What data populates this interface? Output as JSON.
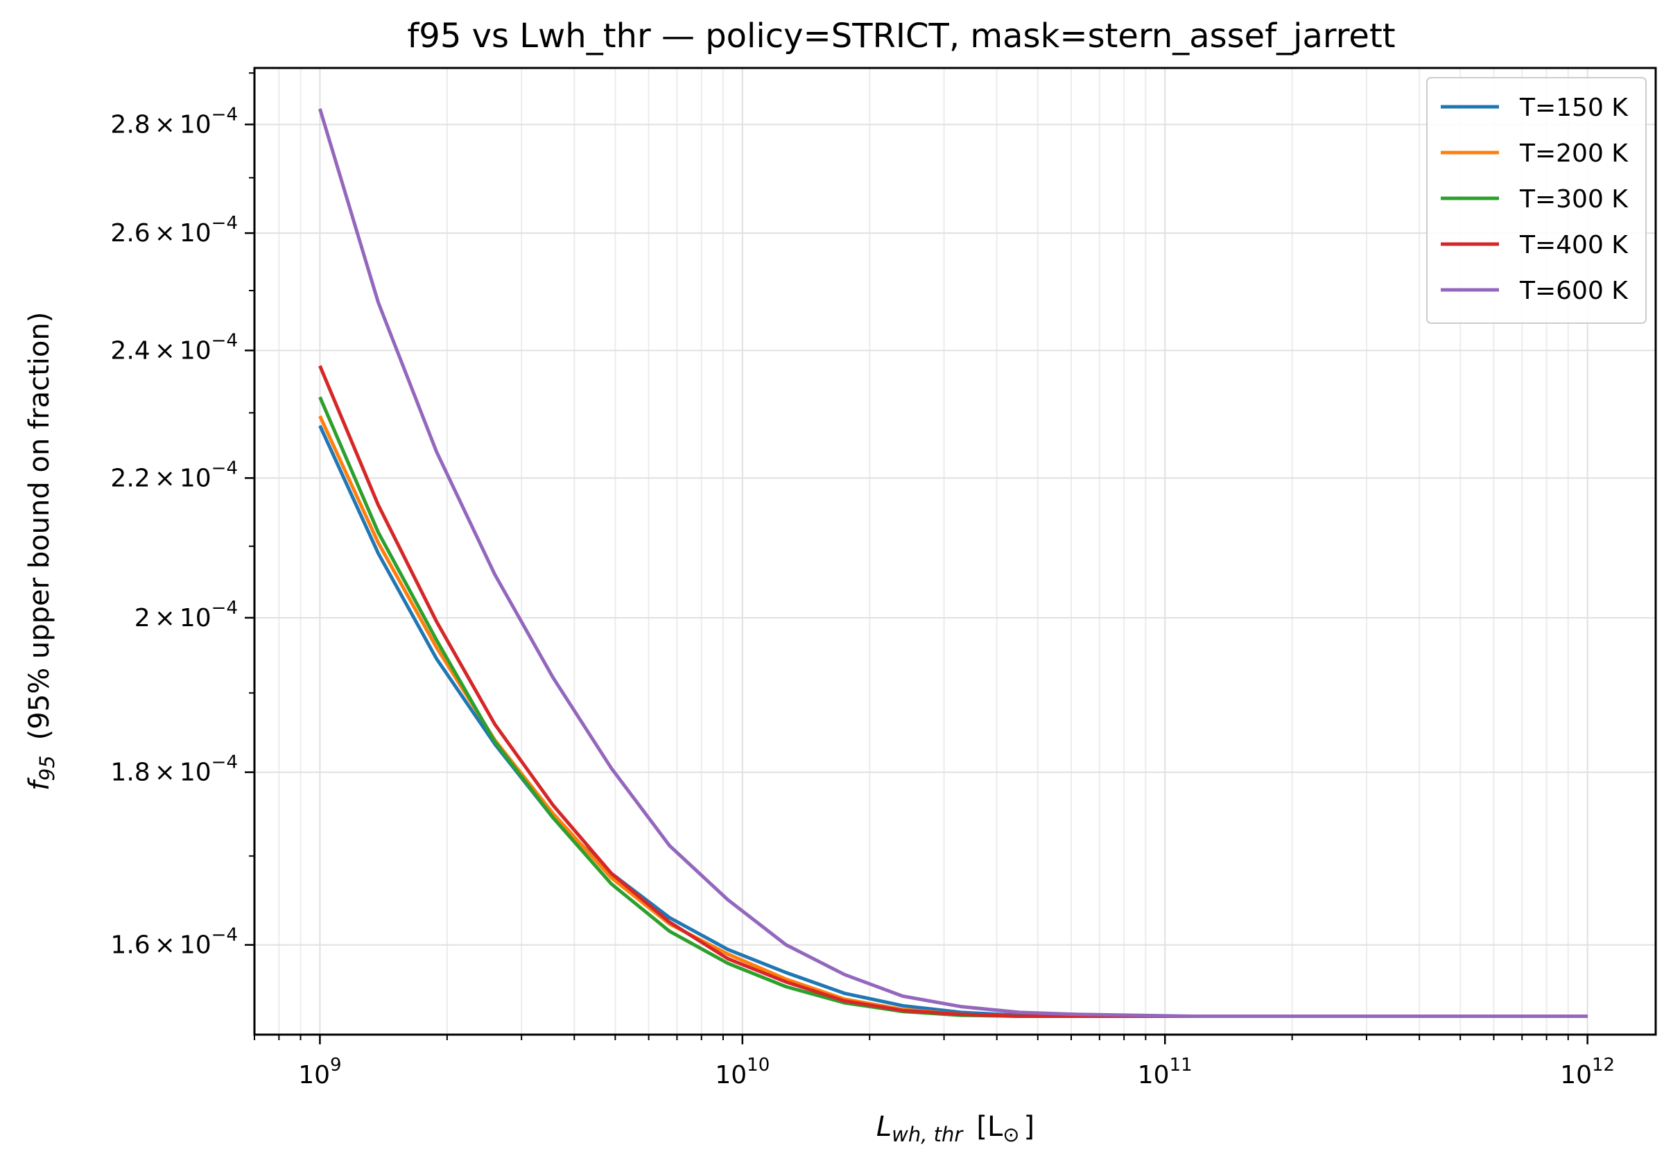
{
  "chart_data": {
    "type": "line",
    "title": "f95 vs Lwh_thr — policy=STRICT, mask=stern_assef_jarrett",
    "xlabel": {
      "main": "L",
      "sub": "wh, thr",
      "unit_open": "[L",
      "unit_sub": "⊙",
      "unit_close": "]"
    },
    "ylabel": {
      "main": "f",
      "sub": "95",
      "desc": "(95% upper bound on fraction)"
    },
    "xscale": "log",
    "yscale": "log",
    "xlim": [
      700000000.0,
      1450000000000.0
    ],
    "ylim": [
      0.0001505,
      0.000291
    ],
    "grid": true,
    "legend_position": "upper-right",
    "x_ticks": [
      {
        "value": 1000000000.0,
        "base": "10",
        "exp": "9"
      },
      {
        "value": 10000000000.0,
        "base": "10",
        "exp": "10"
      },
      {
        "value": 100000000000.0,
        "base": "10",
        "exp": "11"
      },
      {
        "value": 1000000000000.0,
        "base": "10",
        "exp": "12"
      }
    ],
    "y_ticks": [
      {
        "value": 0.00016,
        "mant": "1.6",
        "times": "×",
        "base": "10",
        "exp": "−4"
      },
      {
        "value": 0.00018,
        "mant": "1.8",
        "times": "×",
        "base": "10",
        "exp": "−4"
      },
      {
        "value": 0.0002,
        "mant": "2",
        "times": "×",
        "base": "10",
        "exp": "−4"
      },
      {
        "value": 0.00022,
        "mant": "2.2",
        "times": "×",
        "base": "10",
        "exp": "−4"
      },
      {
        "value": 0.00024,
        "mant": "2.4",
        "times": "×",
        "base": "10",
        "exp": "−4"
      },
      {
        "value": 0.00026,
        "mant": "2.6",
        "times": "×",
        "base": "10",
        "exp": "−4"
      },
      {
        "value": 0.00028,
        "mant": "2.8",
        "times": "×",
        "base": "10",
        "exp": "−4"
      }
    ],
    "x": [
      1000000000.0,
      1374000000.0,
      1887000000.0,
      2593000000.0,
      3562000000.0,
      4894000000.0,
      6723000000.0,
      9237000000.0,
      12690000000.0,
      17430000000.0,
      23950000000.0,
      32900000000.0,
      45200000000.0,
      62100000000.0,
      85320000000.0,
      117200000000.0,
      161000000000.0,
      221200000000.0,
      303900000000.0,
      417500000000.0,
      573600000000.0,
      788000000000.0,
      1000000000000.0
    ],
    "series": [
      {
        "name": "T=150 K",
        "color": "#1f77b4",
        "values": [
          0.000228,
          0.000209,
          0.0001945,
          0.0001835,
          0.0001745,
          0.000168,
          0.000163,
          0.0001595,
          0.000157,
          0.0001548,
          0.0001535,
          0.0001528,
          0.0001525,
          0.0001524,
          0.0001524,
          0.0001524,
          0.0001524,
          0.0001524,
          0.0001524,
          0.0001524,
          0.0001524,
          0.0001524,
          0.0001524
        ]
      },
      {
        "name": "T=200 K",
        "color": "#ff7f0e",
        "values": [
          0.0002295,
          0.0002105,
          0.000196,
          0.000184,
          0.000175,
          0.0001675,
          0.0001623,
          0.000159,
          0.0001563,
          0.0001542,
          0.0001531,
          0.0001526,
          0.0001524,
          0.0001524,
          0.0001524,
          0.0001524,
          0.0001524,
          0.0001524,
          0.0001524,
          0.0001524,
          0.0001524,
          0.0001524,
          0.0001524
        ]
      },
      {
        "name": "T=300 K",
        "color": "#2ca02c",
        "values": [
          0.0002325,
          0.000212,
          0.000197,
          0.0001838,
          0.0001745,
          0.0001668,
          0.0001615,
          0.000158,
          0.0001555,
          0.0001538,
          0.0001529,
          0.0001525,
          0.0001524,
          0.0001524,
          0.0001524,
          0.0001524,
          0.0001524,
          0.0001524,
          0.0001524,
          0.0001524,
          0.0001524,
          0.0001524,
          0.0001524
        ]
      },
      {
        "name": "T=400 K",
        "color": "#d62728",
        "values": [
          0.0002375,
          0.000216,
          0.0001995,
          0.000186,
          0.000176,
          0.000168,
          0.0001625,
          0.0001585,
          0.000156,
          0.000154,
          0.000153,
          0.0001526,
          0.0001524,
          0.0001524,
          0.0001524,
          0.0001524,
          0.0001524,
          0.0001524,
          0.0001524,
          0.0001524,
          0.0001524,
          0.0001524,
          0.0001524
        ]
      },
      {
        "name": "T=600 K",
        "color": "#9467bd",
        "values": [
          0.000283,
          0.000248,
          0.000224,
          0.000206,
          0.000192,
          0.0001805,
          0.0001712,
          0.000165,
          0.00016,
          0.0001568,
          0.0001545,
          0.0001534,
          0.0001528,
          0.0001526,
          0.0001525,
          0.0001524,
          0.0001524,
          0.0001524,
          0.0001524,
          0.0001524,
          0.0001524,
          0.0001524,
          0.0001524
        ]
      }
    ]
  }
}
